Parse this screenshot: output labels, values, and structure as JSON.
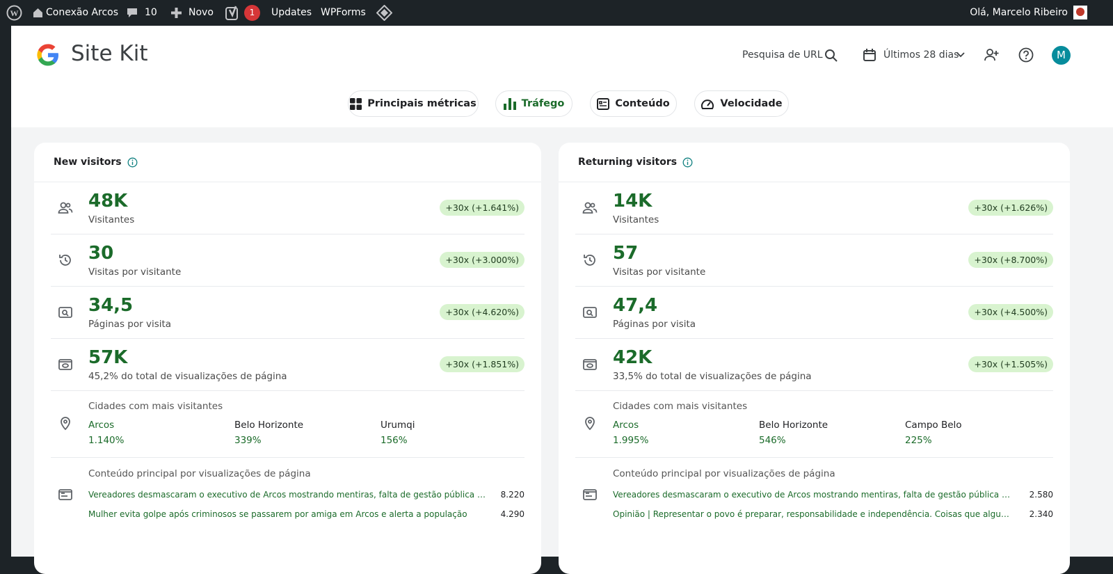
{
  "admin_bar": {
    "site": "Conexão Arcos",
    "comments": "10",
    "new": "Novo",
    "yoast_badge": "1",
    "updates": "Updates",
    "wpforms": "WPForms",
    "greeting": "Olá, Marcelo Ribeiro"
  },
  "header": {
    "logo": "Site Kit",
    "url_search": "Pesquisa de URL",
    "date_range": "Últimos 28 dias",
    "avatar": "M"
  },
  "tabs": [
    "Principais métricas",
    "Tráfego",
    "Conteúdo",
    "Velocidade"
  ],
  "cards": [
    {
      "title": "New visitors",
      "metrics": [
        {
          "value": "48K",
          "label": "Visitantes",
          "change": "+30x (+1.641%)"
        },
        {
          "value": "30",
          "label": "Visitas por visitante",
          "change": "+30x (+3.000%)"
        },
        {
          "value": "34,5",
          "label": "Páginas por visita",
          "change": "+30x (+4.620%)"
        },
        {
          "value": "57K",
          "label": "45,2% do total de visualizações de página",
          "change": "+30x (+1.851%)"
        }
      ],
      "cities_title": "Cidades com mais visitantes",
      "cities": [
        {
          "name": "Arcos",
          "value": "1.140%"
        },
        {
          "name": "Belo Horizonte",
          "value": "339%"
        },
        {
          "name": "Urumqi",
          "value": "156%"
        }
      ],
      "content_title": "Conteúdo principal por visualizações de página",
      "content": [
        {
          "title": "Vereadores desmascaram o executivo de Arcos mostrando mentiras, falta de gestão pública e movimentos",
          "views": "8.220"
        },
        {
          "title": "Mulher evita golpe após criminosos se passarem por amiga em Arcos e alerta a população",
          "views": "4.290"
        }
      ]
    },
    {
      "title": "Returning visitors",
      "metrics": [
        {
          "value": "14K",
          "label": "Visitantes",
          "change": "+30x (+1.626%)"
        },
        {
          "value": "57",
          "label": "Visitas por visitante",
          "change": "+30x (+8.700%)"
        },
        {
          "value": "47,4",
          "label": "Páginas por visita",
          "change": "+30x (+4.500%)"
        },
        {
          "value": "42K",
          "label": "33,5% do total de visualizações de página",
          "change": "+30x (+1.505%)"
        }
      ],
      "cities_title": "Cidades com mais visitantes",
      "cities": [
        {
          "name": "Arcos",
          "value": "1.995%"
        },
        {
          "name": "Belo Horizonte",
          "value": "546%"
        },
        {
          "name": "Campo Belo",
          "value": "225%"
        }
      ],
      "content_title": "Conteúdo principal por visualizações de página",
      "content": [
        {
          "title": "Vereadores desmascaram o executivo de Arcos mostrando mentiras, falta de gestão pública e movimentos",
          "views": "2.580"
        },
        {
          "title": "Opinião | Representar o povo é preparar, responsabilidade e independência. Coisas que alguns vereadores",
          "views": "2.340"
        }
      ]
    }
  ]
}
